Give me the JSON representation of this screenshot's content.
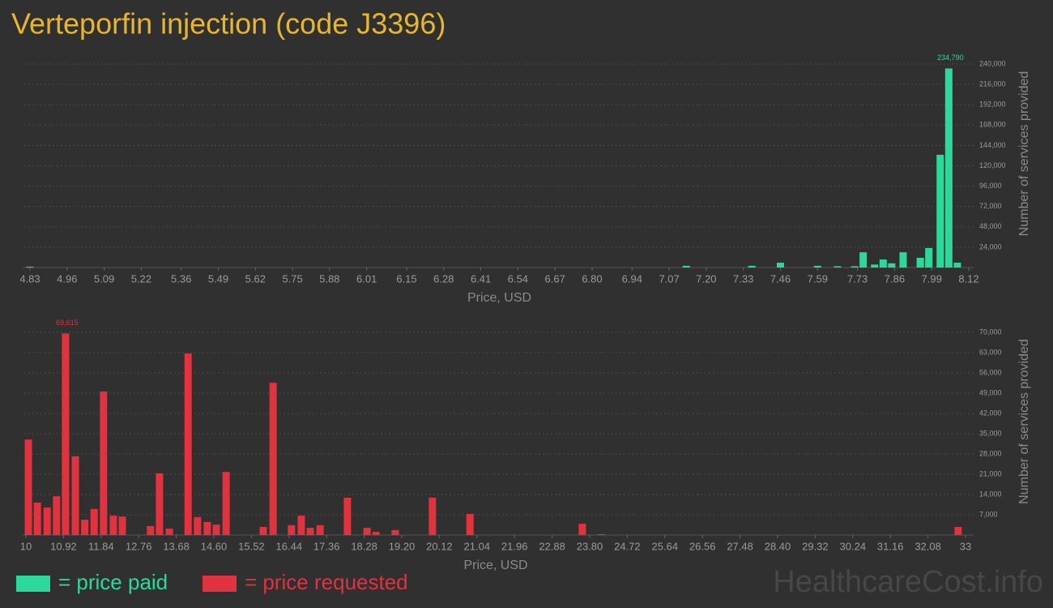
{
  "title": "Verteporfin injection (code J3396)",
  "watermark": "HealthcareCost.info",
  "chart_data": [
    {
      "type": "bar",
      "xlabel": "Price, USD",
      "ylabel": "Number of services provided",
      "x": [
        4.83,
        7.13,
        7.36,
        7.46,
        7.59,
        7.66,
        7.72,
        7.75,
        7.79,
        7.82,
        7.85,
        7.89,
        7.95,
        7.98,
        8.02,
        8.05,
        8.08
      ],
      "series": [
        {
          "name": "= price paid",
          "color": "#2bd99a",
          "values": [
            1000,
            2000,
            2000,
            5700,
            2000,
            1500,
            1500,
            18000,
            3500,
            9500,
            5000,
            18000,
            11500,
            23000,
            133000,
            234790,
            5700
          ],
          "value_labels": [
            null,
            null,
            null,
            null,
            null,
            null,
            null,
            null,
            null,
            null,
            null,
            null,
            null,
            null,
            null,
            "234,790",
            null
          ]
        }
      ],
      "xlim": [
        4.83,
        8.12
      ],
      "xticks": [
        4.83,
        4.96,
        5.09,
        5.22,
        5.36,
        5.49,
        5.62,
        5.75,
        5.88,
        6.01,
        6.15,
        6.28,
        6.41,
        6.54,
        6.67,
        {
          "value": 6.8,
          "label": "6.80"
        },
        6.94,
        7.07,
        {
          "value": 7.2,
          "label": "7.20"
        },
        7.33,
        7.46,
        7.59,
        7.73,
        7.86,
        7.99,
        8.12
      ],
      "ylim": [
        0,
        240000
      ],
      "yticks": [
        {
          "value": 24000,
          "label": "24,000"
        },
        {
          "value": 48000,
          "label": "48,000"
        },
        {
          "value": 72000,
          "label": "72,000"
        },
        {
          "value": 96000,
          "label": "96,000"
        },
        {
          "value": 120000,
          "label": "120,000"
        },
        {
          "value": 144000,
          "label": "144,000"
        },
        {
          "value": 168000,
          "label": "168,000"
        },
        {
          "value": 192000,
          "label": "192,000"
        },
        {
          "value": 216000,
          "label": "216,000"
        },
        {
          "value": 240000,
          "label": "240,000"
        }
      ],
      "grid": true
    },
    {
      "type": "bar",
      "xlabel": "Price, USD",
      "ylabel": "Number of services provided",
      "x": [
        10.06,
        10.28,
        10.52,
        10.75,
        10.97,
        11.21,
        11.44,
        11.67,
        11.9,
        12.14,
        12.36,
        13.05,
        13.27,
        13.51,
        13.97,
        14.2,
        14.44,
        14.66,
        14.9,
        15.81,
        16.05,
        16.5,
        16.74,
        16.96,
        17.2,
        17.87,
        18.35,
        18.57,
        19.04,
        19.95,
        20.87,
        23.62,
        24.08,
        32.82
      ],
      "series": [
        {
          "name": "= price requested",
          "color": "#e0323f",
          "values": [
            33000,
            11200,
            9500,
            13400,
            69615,
            27200,
            5300,
            9000,
            49600,
            6700,
            6400,
            3100,
            21300,
            2200,
            62700,
            6200,
            4500,
            3600,
            21800,
            2800,
            52600,
            3400,
            6700,
            2500,
            3400,
            12900,
            2500,
            1100,
            1700,
            12900,
            7300,
            3900,
            300,
            2800
          ],
          "value_labels": [
            null,
            null,
            null,
            null,
            "69,615",
            null,
            null,
            null,
            null,
            null,
            null,
            null,
            null,
            null,
            null,
            null,
            null,
            null,
            null,
            null,
            null,
            null,
            null,
            null,
            null,
            null,
            null,
            null,
            null,
            null,
            null,
            null,
            null,
            null
          ]
        }
      ],
      "xlim": [
        10,
        33
      ],
      "xticks": [
        10,
        10.92,
        11.84,
        12.76,
        13.68,
        {
          "value": 14.6,
          "label": "14.60"
        },
        15.52,
        16.44,
        17.36,
        18.28,
        {
          "value": 19.2,
          "label": "19.20"
        },
        20.12,
        21.04,
        21.96,
        22.88,
        {
          "value": 23.8,
          "label": "23.80"
        },
        24.72,
        25.64,
        26.56,
        27.48,
        {
          "value": 28.4,
          "label": "28.40"
        },
        29.32,
        30.24,
        31.16,
        32.08,
        33
      ],
      "ylim": [
        0,
        70000
      ],
      "yticks": [
        {
          "value": 7000,
          "label": "7,000"
        },
        {
          "value": 14000,
          "label": "14,000"
        },
        {
          "value": 21000,
          "label": "21,000"
        },
        {
          "value": 28000,
          "label": "28,000"
        },
        {
          "value": 35000,
          "label": "35,000"
        },
        {
          "value": 42000,
          "label": "42,000"
        },
        {
          "value": 49000,
          "label": "49,000"
        },
        {
          "value": 56000,
          "label": "56,000"
        },
        {
          "value": 63000,
          "label": "63,000"
        },
        {
          "value": 70000,
          "label": "70,000"
        }
      ],
      "grid": true
    }
  ]
}
